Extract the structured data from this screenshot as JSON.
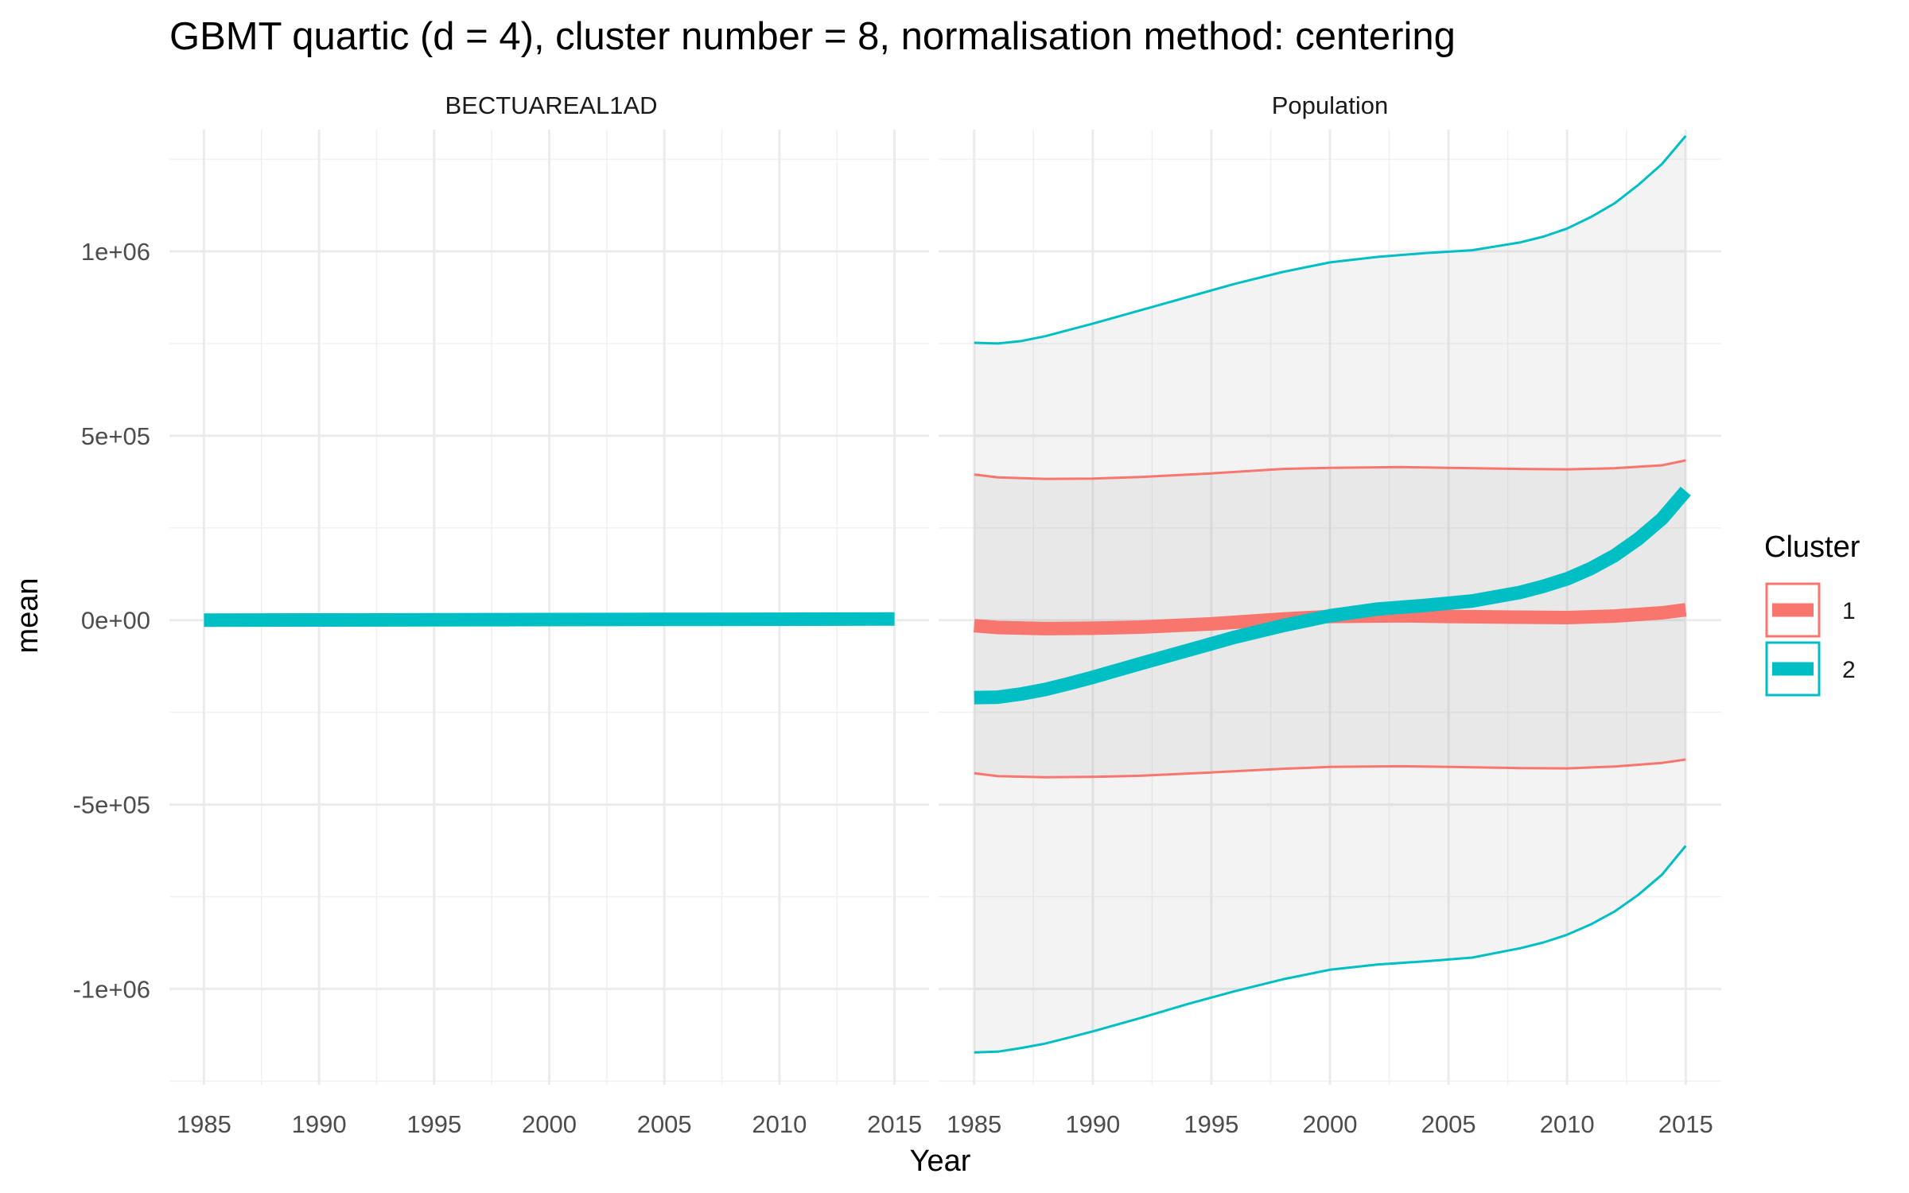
{
  "chart_data": {
    "type": "line",
    "title": "GBMT quartic (d = 4), cluster number = 8, normalisation method: centering",
    "xlabel": "Year",
    "ylabel": "mean",
    "x_ticks": [
      "1985",
      "1990",
      "1995",
      "2000",
      "2005",
      "2010",
      "2015"
    ],
    "y_ticks": [
      "1e+06",
      "5e+05",
      "0e+00",
      "-5e+05",
      "-1e+06"
    ],
    "x_range": [
      1983.5,
      2016.5
    ],
    "y_range": [
      -1260000,
      1330000
    ],
    "grid": true,
    "legend": {
      "title": "Cluster",
      "placement": "right",
      "entries": [
        {
          "label": "1",
          "color": "#F8766D"
        },
        {
          "label": "2",
          "color": "#00BFC4"
        }
      ]
    },
    "facets": [
      {
        "strip": "BECTUAREAL1AD",
        "series": [
          {
            "cluster": "2",
            "color": "#00BFC4",
            "x": [
              1985,
              1990,
              1995,
              2000,
              2005,
              2010,
              2015
            ],
            "mean": [
              0,
              500,
              1000,
              1500,
              2000,
              2500,
              3000
            ]
          }
        ]
      },
      {
        "strip": "Population",
        "series": [
          {
            "cluster": "1",
            "color": "#F8766D",
            "x": [
              1985,
              1986,
              1988,
              1990,
              1992,
              1995,
              1998,
              2000,
              2003,
              2005,
              2008,
              2010,
              2012,
              2014,
              2015
            ],
            "mean": [
              -15000,
              -20000,
              -23000,
              -22000,
              -19000,
              -10000,
              3000,
              10000,
              12000,
              10000,
              8000,
              7000,
              11000,
              20000,
              28000
            ],
            "upper": [
              395000,
              387000,
              383000,
              384000,
              388000,
              398000,
              410000,
              413000,
              415000,
              413000,
              410000,
              409000,
              412000,
              420000,
              433000
            ],
            "lower": [
              -415000,
              -423000,
              -426000,
              -425000,
              -422000,
              -413000,
              -403000,
              -398000,
              -396000,
              -398000,
              -401000,
              -402000,
              -397000,
              -387000,
              -378000
            ]
          },
          {
            "cluster": "2",
            "color": "#00BFC4",
            "x": [
              1985,
              1986,
              1987,
              1988,
              1989,
              1990,
              1992,
              1994,
              1996,
              1998,
              2000,
              2002,
              2004,
              2006,
              2008,
              2009,
              2010,
              2011,
              2012,
              2013,
              2014,
              2015
            ],
            "mean": [
              -210000,
              -209000,
              -200000,
              -188000,
              -172000,
              -155000,
              -118000,
              -82000,
              -46000,
              -15000,
              12000,
              30000,
              40000,
              52000,
              75000,
              92000,
              112000,
              140000,
              175000,
              220000,
              275000,
              350000
            ],
            "upper": [
              752000,
              750000,
              757000,
              770000,
              787000,
              804000,
              840000,
              876000,
              912000,
              944000,
              970000,
              985000,
              995000,
              1003000,
              1024000,
              1040000,
              1062000,
              1093000,
              1130000,
              1180000,
              1237000,
              1313000
            ],
            "lower": [
              -1172000,
              -1170000,
              -1160000,
              -1148000,
              -1132000,
              -1115000,
              -1079000,
              -1041000,
              -1006000,
              -974000,
              -948000,
              -934000,
              -925000,
              -915000,
              -890000,
              -874000,
              -853000,
              -825000,
              -790000,
              -745000,
              -690000,
              -612000
            ]
          }
        ]
      }
    ]
  }
}
